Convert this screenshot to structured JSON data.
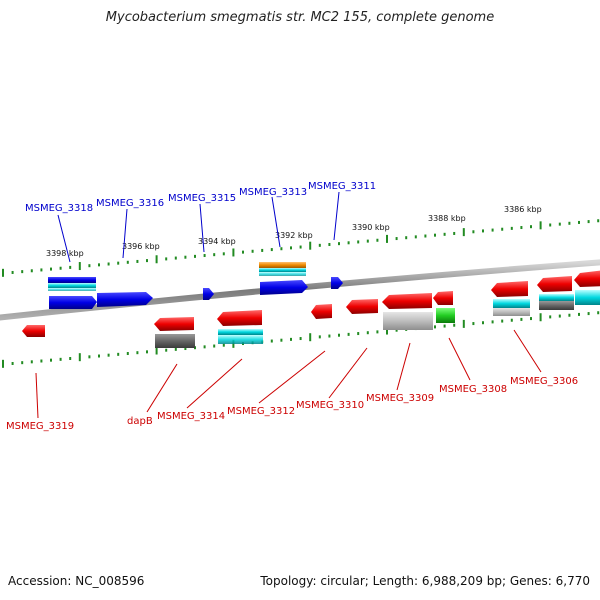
{
  "title": "Mycobacterium smegmatis str. MC2 155, complete genome",
  "footer": {
    "accession": "Accession: NC_008596",
    "summary": "Topology: circular; Length: 6,988,209 bp; Genes: 6,770"
  },
  "colors": {
    "forward_label": "#0000cc",
    "reverse_label": "#cc0000",
    "forward_gene": "#0000e6",
    "reverse_gene": "#ee0000",
    "tick": "#228b22",
    "backbone": "#888888"
  },
  "scale_labels": [
    "3398 kbp",
    "3396 kbp",
    "3394 kbp",
    "3392 kbp",
    "3390 kbp",
    "3388 kbp",
    "3386 kbp"
  ],
  "forward_labels": [
    "MSMEG_3318",
    "MSMEG_3316",
    "MSMEG_3315",
    "MSMEG_3313",
    "MSMEG_3311"
  ],
  "reverse_labels": [
    "MSMEG_3319",
    "dapB",
    "MSMEG_3314",
    "MSMEG_3312",
    "MSMEG_3310",
    "MSMEG_3309",
    "MSMEG_3308",
    "MSMEG_3306"
  ]
}
